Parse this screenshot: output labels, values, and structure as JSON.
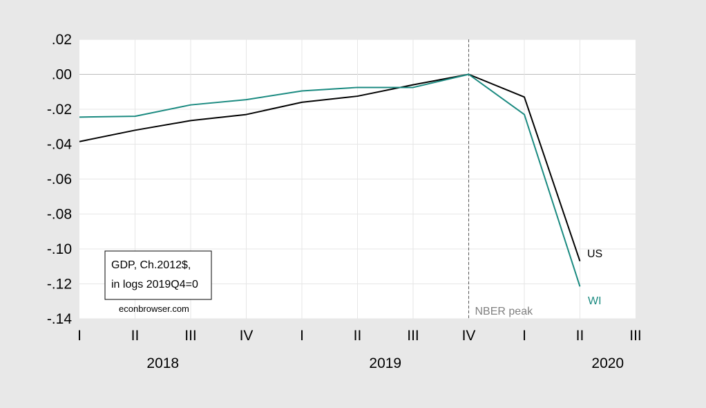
{
  "chart_data": {
    "type": "line",
    "ylim": [
      -0.14,
      0.02
    ],
    "y_ticks": [
      ".02",
      ".00",
      "-.02",
      "-.04",
      "-.06",
      "-.08",
      "-.10",
      "-.12",
      "-.14"
    ],
    "y_tick_values": [
      0.02,
      0.0,
      -0.02,
      -0.04,
      -0.06,
      -0.08,
      -0.1,
      -0.12,
      -0.14
    ],
    "x_tick_labels": [
      "I",
      "II",
      "III",
      "IV",
      "I",
      "II",
      "III",
      "IV",
      "I",
      "II",
      "III"
    ],
    "x_years": [
      "2018",
      "2019",
      "2020"
    ],
    "x": [
      "2018Q1",
      "2018Q2",
      "2018Q3",
      "2018Q4",
      "2019Q1",
      "2019Q2",
      "2019Q3",
      "2019Q4",
      "2020Q1",
      "2020Q2"
    ],
    "series": [
      {
        "name": "US",
        "color": "#000000",
        "values": [
          -0.0385,
          -0.032,
          -0.0265,
          -0.023,
          -0.016,
          -0.0125,
          -0.006,
          0.0,
          -0.013,
          -0.107
        ]
      },
      {
        "name": "WI",
        "color": "#1a8a80",
        "values": [
          -0.0245,
          -0.024,
          -0.0175,
          -0.0145,
          -0.0095,
          -0.0075,
          -0.0075,
          0.0,
          -0.023,
          -0.1215
        ]
      }
    ],
    "grid": true,
    "annotations": {
      "box_line1": "GDP, Ch.2012$,",
      "box_line2": "in logs 2019Q4=0",
      "source": "econbrowser.com",
      "vline_label": "NBER peak",
      "vline_at": "2019Q4"
    }
  }
}
